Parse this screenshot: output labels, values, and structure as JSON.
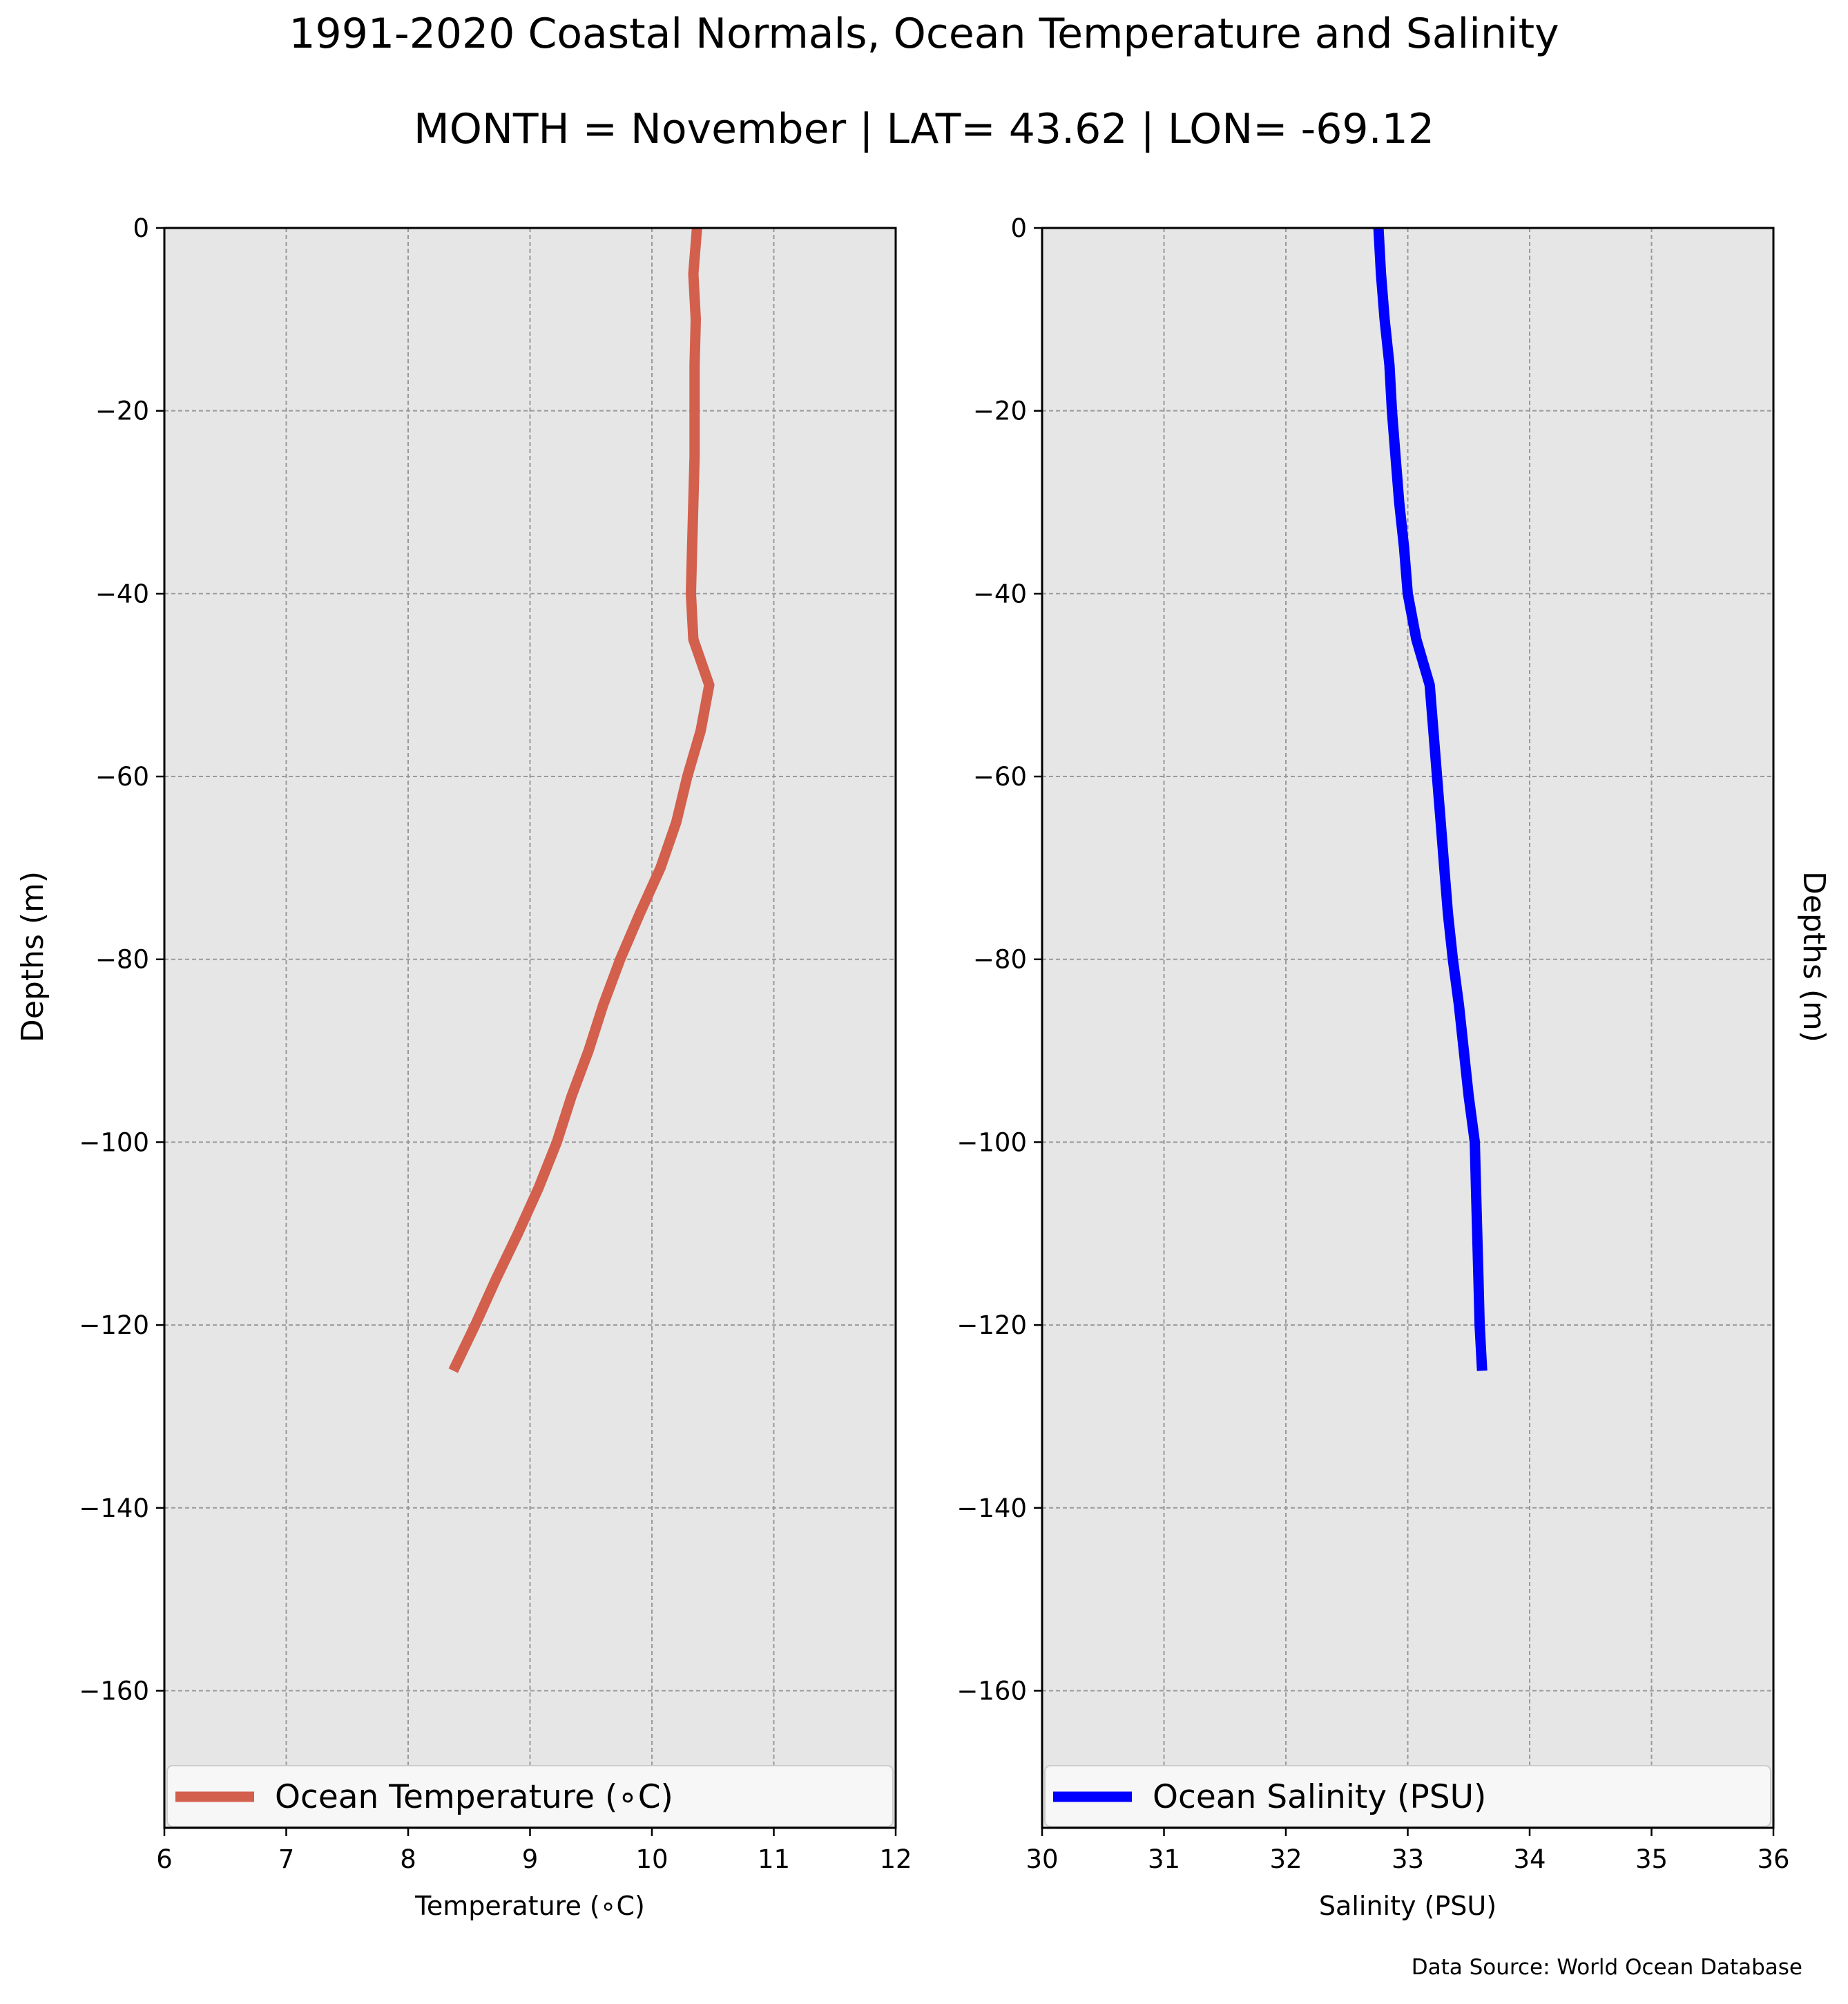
{
  "title": "1991-2020 Coastal Normals, Ocean Temperature and Salinity",
  "subtitle": "MONTH = November | LAT= 43.62 | LON= -69.12",
  "source_note": "Data Source: World Ocean Database",
  "chart_data": [
    {
      "type": "line",
      "id": "temperature",
      "xlabel": "Temperature (∘C)",
      "ylabel": "Depths (m)",
      "xlim": [
        6,
        12
      ],
      "ylim": [
        -175,
        0
      ],
      "x_ticks": [
        6,
        7,
        8,
        9,
        10,
        11,
        12
      ],
      "y_ticks": [
        0,
        -20,
        -40,
        -60,
        -80,
        -100,
        -120,
        -140,
        -160
      ],
      "grid": true,
      "legend_position": "bottom",
      "color": "#d35f4d",
      "series": [
        {
          "name": "Ocean Temperature (∘C)",
          "x": [
            10.37,
            10.34,
            10.36,
            10.35,
            10.35,
            10.35,
            10.34,
            10.33,
            10.32,
            10.34,
            10.47,
            10.4,
            10.29,
            10.2,
            10.07,
            9.9,
            9.74,
            9.6,
            9.48,
            9.34,
            9.22,
            9.07,
            8.9,
            8.72,
            8.55,
            8.37
          ],
          "y": [
            0,
            -5,
            -10,
            -15,
            -20,
            -25,
            -30,
            -35,
            -40,
            -45,
            -50,
            -55,
            -60,
            -65,
            -70,
            -75,
            -80,
            -85,
            -90,
            -95,
            -100,
            -105,
            -110,
            -115,
            -120,
            -125
          ]
        }
      ]
    },
    {
      "type": "line",
      "id": "salinity",
      "xlabel": "Salinity (PSU)",
      "ylabel": "Depths (m)",
      "xlim": [
        30,
        36
      ],
      "ylim": [
        -175,
        0
      ],
      "x_ticks": [
        30,
        31,
        32,
        33,
        34,
        35,
        36
      ],
      "y_ticks": [
        0,
        -20,
        -40,
        -60,
        -80,
        -100,
        -120,
        -140,
        -160
      ],
      "grid": true,
      "legend_position": "bottom",
      "color": "#0000ff",
      "series": [
        {
          "name": "Ocean Salinity (PSU)",
          "x": [
            32.76,
            32.78,
            32.81,
            32.85,
            32.87,
            32.9,
            32.93,
            32.97,
            33.0,
            33.07,
            33.18,
            33.21,
            33.24,
            33.27,
            33.3,
            33.33,
            33.37,
            33.42,
            33.46,
            33.5,
            33.55,
            33.56,
            33.57,
            33.58,
            33.59,
            33.61
          ],
          "y": [
            0,
            -5,
            -10,
            -15,
            -20,
            -25,
            -30,
            -35,
            -40,
            -45,
            -50,
            -55,
            -60,
            -65,
            -70,
            -75,
            -80,
            -85,
            -90,
            -95,
            -100,
            -105,
            -110,
            -115,
            -120,
            -125
          ]
        }
      ]
    }
  ]
}
